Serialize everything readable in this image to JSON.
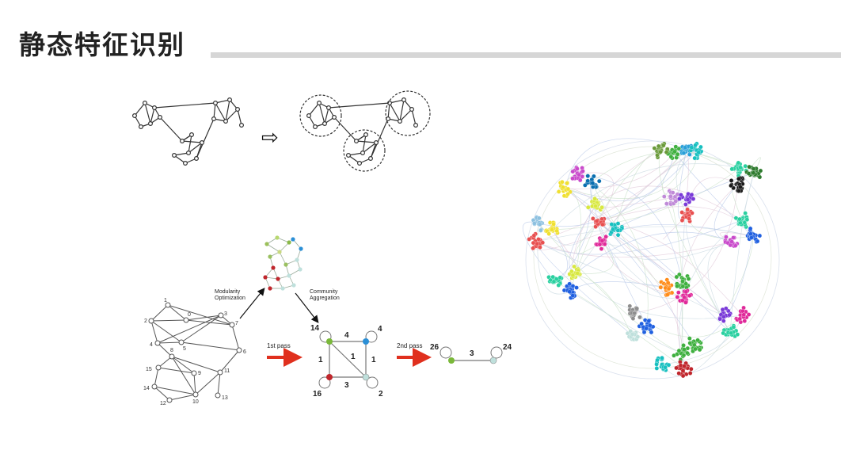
{
  "header": {
    "title": "静态特征识别"
  },
  "diagram_top": {
    "arrow_symbol": "⇨"
  },
  "louvain": {
    "left_nodes": [
      "1",
      "2",
      "3",
      "4",
      "5",
      "6",
      "7",
      "8",
      "9",
      "10",
      "11",
      "12",
      "13",
      "14",
      "15"
    ],
    "step1_label_line1": "Modularity",
    "step1_label_line2": "Optimization",
    "step2_label_line1": "Community",
    "step2_label_line2": "Aggregation",
    "pass1_label": "1st pass",
    "pass2_label": "2nd pass",
    "square": {
      "tl": "14",
      "tr": "4",
      "bl": "16",
      "br": "2",
      "top_edge": "4",
      "left_edge": "1",
      "right_edge": "1",
      "bottom_edge": "3",
      "diag": "1"
    },
    "final": {
      "left": "26",
      "right": "24",
      "edge": "3"
    },
    "colors": {
      "red_arrow": "#e0301e",
      "green": "#7ab83a",
      "blue": "#2b8fd6",
      "red": "#c0262c",
      "teal": "#bfe0dc"
    }
  },
  "network": {
    "cluster_colors": [
      "#3fb03f",
      "#2aa0d8",
      "#18c0c0",
      "#0a6fb0",
      "#e02a9a",
      "#7a3ad8",
      "#2e7b2e",
      "#8e8e8e",
      "#c94acb",
      "#e85050",
      "#2ad0a0",
      "#ff8c1a",
      "#f0e030",
      "#1a1a1a",
      "#2060e0",
      "#d8e840",
      "#c08ad8",
      "#6a9a3a"
    ]
  }
}
